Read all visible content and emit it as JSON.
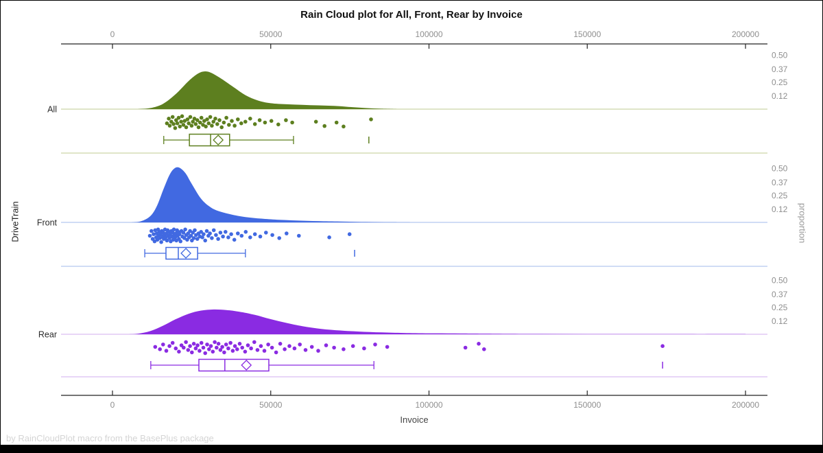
{
  "chart_data": {
    "type": "raincloud",
    "title": "Rain Cloud plot for All, Front, Rear by Invoice",
    "xlabel": "Invoice",
    "ylabel_left": "DriveTrain",
    "ylabel_right": "proportion",
    "footer": "by RainCloudPlot macro from the BasePlus package",
    "x_axis": {
      "min": 0,
      "max": 200000,
      "ticks": [
        0,
        50000,
        100000,
        150000,
        200000
      ]
    },
    "proportion_ticks": [
      0.5,
      0.37,
      0.25,
      0.12
    ],
    "legend_position": "none",
    "grid": false,
    "style": {
      "axis_color": "#222222",
      "tick_label_color": "#8e8e8e",
      "category_label_color": "#2a2a2a",
      "title_color": "#111111",
      "footer_color": "#d5d5d5",
      "background": "#ffffff"
    },
    "groups": [
      {
        "label": "All",
        "color": "#5d7f1f",
        "light_color": "#ccd5a8",
        "box": {
          "low": 16200,
          "q1": 24300,
          "median": 31000,
          "mean": 33400,
          "q3": 37000,
          "high": 57200
        },
        "outliers": [
          81000
        ],
        "density": {
          "x": [
            8000,
            12000,
            16000,
            20000,
            24000,
            27000,
            29000,
            31000,
            34000,
            38000,
            42000,
            46000,
            50000,
            55000,
            60000,
            65000,
            70000,
            75000,
            80000,
            85000,
            90000
          ],
          "p": [
            0,
            0.01,
            0.05,
            0.14,
            0.26,
            0.33,
            0.35,
            0.34,
            0.29,
            0.21,
            0.13,
            0.08,
            0.055,
            0.045,
            0.04,
            0.035,
            0.03,
            0.02,
            0.01,
            0.004,
            0
          ]
        },
        "points": [
          [
            17200,
            0.55
          ],
          [
            17800,
            0.25
          ],
          [
            18100,
            0.7
          ],
          [
            18600,
            0.45
          ],
          [
            19000,
            0.15
          ],
          [
            19300,
            0.6
          ],
          [
            19800,
            0.85
          ],
          [
            20100,
            0.35
          ],
          [
            20500,
            0.55
          ],
          [
            20900,
            0.2
          ],
          [
            21300,
            0.75
          ],
          [
            21700,
            0.45
          ],
          [
            22000,
            0.1
          ],
          [
            22400,
            0.65
          ],
          [
            22800,
            0.4
          ],
          [
            23300,
            0.8
          ],
          [
            23700,
            0.3
          ],
          [
            24100,
            0.55
          ],
          [
            24600,
            0.15
          ],
          [
            25000,
            0.7
          ],
          [
            25400,
            0.45
          ],
          [
            25900,
            0.25
          ],
          [
            26300,
            0.6
          ],
          [
            26800,
            0.35
          ],
          [
            27200,
            0.8
          ],
          [
            27700,
            0.5
          ],
          [
            28100,
            0.2
          ],
          [
            28600,
            0.65
          ],
          [
            29000,
            0.4
          ],
          [
            29500,
            0.75
          ],
          [
            29900,
            0.3
          ],
          [
            30400,
            0.55
          ],
          [
            30900,
            0.15
          ],
          [
            31400,
            0.7
          ],
          [
            31900,
            0.45
          ],
          [
            32500,
            0.25
          ],
          [
            33100,
            0.6
          ],
          [
            33800,
            0.35
          ],
          [
            34500,
            0.8
          ],
          [
            35200,
            0.5
          ],
          [
            36000,
            0.2
          ],
          [
            36800,
            0.65
          ],
          [
            37700,
            0.4
          ],
          [
            38600,
            0.7
          ],
          [
            39600,
            0.3
          ],
          [
            40700,
            0.55
          ],
          [
            42000,
            0.45
          ],
          [
            43500,
            0.25
          ],
          [
            45000,
            0.6
          ],
          [
            46500,
            0.35
          ],
          [
            48200,
            0.5
          ],
          [
            50200,
            0.4
          ],
          [
            52400,
            0.62
          ],
          [
            54800,
            0.35
          ],
          [
            56800,
            0.5
          ],
          [
            64300,
            0.45
          ],
          [
            67000,
            0.72
          ],
          [
            70800,
            0.5
          ],
          [
            73000,
            0.75
          ],
          [
            81700,
            0.3
          ]
        ]
      },
      {
        "label": "Front",
        "color": "#4169e1",
        "light_color": "#b3c7ef",
        "box": {
          "low": 10200,
          "q1": 16900,
          "median": 20800,
          "mean": 23200,
          "q3": 26900,
          "high": 42000
        },
        "outliers": [
          76500
        ],
        "density": {
          "x": [
            6000,
            9000,
            12000,
            14000,
            16000,
            18000,
            19500,
            21000,
            23000,
            25000,
            28000,
            31000,
            34000,
            38000,
            42000,
            47000,
            52000,
            58000,
            65000,
            72000,
            80000,
            88000,
            95000
          ],
          "p": [
            0,
            0.01,
            0.06,
            0.15,
            0.3,
            0.44,
            0.5,
            0.51,
            0.46,
            0.36,
            0.22,
            0.14,
            0.1,
            0.07,
            0.05,
            0.035,
            0.025,
            0.018,
            0.012,
            0.008,
            0.004,
            0.001,
            0
          ]
        },
        "points": [
          [
            11800,
            0.5
          ],
          [
            12300,
            0.2
          ],
          [
            12700,
            0.7
          ],
          [
            13000,
            0.4
          ],
          [
            13300,
            0.85
          ],
          [
            13500,
            0.15
          ],
          [
            13800,
            0.6
          ],
          [
            14000,
            0.35
          ],
          [
            14200,
            0.75
          ],
          [
            14400,
            0.1
          ],
          [
            14600,
            0.5
          ],
          [
            14800,
            0.25
          ],
          [
            15000,
            0.65
          ],
          [
            15200,
            0.4
          ],
          [
            15400,
            0.9
          ],
          [
            15600,
            0.2
          ],
          [
            15800,
            0.55
          ],
          [
            16000,
            0.3
          ],
          [
            16200,
            0.7
          ],
          [
            16400,
            0.45
          ],
          [
            16600,
            0.1
          ],
          [
            16800,
            0.6
          ],
          [
            17000,
            0.35
          ],
          [
            17200,
            0.8
          ],
          [
            17400,
            0.15
          ],
          [
            17600,
            0.5
          ],
          [
            17800,
            0.25
          ],
          [
            18000,
            0.65
          ],
          [
            18200,
            0.4
          ],
          [
            18400,
            0.85
          ],
          [
            18600,
            0.2
          ],
          [
            18800,
            0.55
          ],
          [
            19000,
            0.3
          ],
          [
            19200,
            0.75
          ],
          [
            19400,
            0.1
          ],
          [
            19600,
            0.45
          ],
          [
            19800,
            0.6
          ],
          [
            20000,
            0.35
          ],
          [
            20200,
            0.8
          ],
          [
            20400,
            0.15
          ],
          [
            20600,
            0.5
          ],
          [
            20800,
            0.25
          ],
          [
            21000,
            0.7
          ],
          [
            21200,
            0.4
          ],
          [
            21500,
            0.85
          ],
          [
            21800,
            0.2
          ],
          [
            22100,
            0.55
          ],
          [
            22400,
            0.3
          ],
          [
            22700,
            0.65
          ],
          [
            23000,
            0.1
          ],
          [
            23300,
            0.45
          ],
          [
            23600,
            0.75
          ],
          [
            23900,
            0.35
          ],
          [
            24200,
            0.6
          ],
          [
            24500,
            0.2
          ],
          [
            24800,
            0.5
          ],
          [
            25100,
            0.8
          ],
          [
            25400,
            0.3
          ],
          [
            25700,
            0.65
          ],
          [
            26000,
            0.15
          ],
          [
            26400,
            0.45
          ],
          [
            26800,
            0.7
          ],
          [
            27200,
            0.35
          ],
          [
            27600,
            0.55
          ],
          [
            28000,
            0.25
          ],
          [
            28400,
            0.6
          ],
          [
            28800,
            0.4
          ],
          [
            29300,
            0.8
          ],
          [
            29800,
            0.2
          ],
          [
            30300,
            0.5
          ],
          [
            30800,
            0.35
          ],
          [
            31400,
            0.65
          ],
          [
            32000,
            0.15
          ],
          [
            32700,
            0.45
          ],
          [
            33400,
            0.7
          ],
          [
            34100,
            0.3
          ],
          [
            34900,
            0.55
          ],
          [
            35700,
            0.25
          ],
          [
            36600,
            0.6
          ],
          [
            37500,
            0.4
          ],
          [
            38500,
            0.75
          ],
          [
            39600,
            0.35
          ],
          [
            40800,
            0.5
          ],
          [
            42100,
            0.25
          ],
          [
            43500,
            0.6
          ],
          [
            45000,
            0.4
          ],
          [
            46700,
            0.55
          ],
          [
            48500,
            0.3
          ],
          [
            50500,
            0.45
          ],
          [
            52700,
            0.65
          ],
          [
            55000,
            0.35
          ],
          [
            58900,
            0.5
          ],
          [
            68500,
            0.6
          ],
          [
            74900,
            0.4
          ]
        ]
      },
      {
        "label": "Rear",
        "color": "#8a2be2",
        "light_color": "#d9bdf2",
        "box": {
          "low": 12100,
          "q1": 27300,
          "median": 35500,
          "mean": 42300,
          "q3": 49400,
          "high": 82600
        },
        "outliers": [
          173800
        ],
        "density": {
          "x": [
            4000,
            8000,
            12000,
            16000,
            20000,
            24000,
            28000,
            32000,
            36000,
            40000,
            45000,
            50000,
            55000,
            60000,
            66000,
            72000,
            78000,
            85000,
            92000,
            100000,
            110000,
            120000,
            135000,
            150000,
            165000,
            180000,
            200000
          ],
          "p": [
            0,
            0.005,
            0.03,
            0.08,
            0.14,
            0.19,
            0.22,
            0.23,
            0.225,
            0.21,
            0.18,
            0.14,
            0.105,
            0.075,
            0.05,
            0.035,
            0.025,
            0.017,
            0.012,
            0.009,
            0.007,
            0.005,
            0.003,
            0.002,
            0.002,
            0.001,
            0.001
          ]
        },
        "points": [
          [
            13500,
            0.45
          ],
          [
            15000,
            0.6
          ],
          [
            16000,
            0.3
          ],
          [
            17000,
            0.7
          ],
          [
            18000,
            0.4
          ],
          [
            19000,
            0.2
          ],
          [
            20000,
            0.55
          ],
          [
            21000,
            0.75
          ],
          [
            21800,
            0.35
          ],
          [
            22500,
            0.5
          ],
          [
            23200,
            0.15
          ],
          [
            23900,
            0.65
          ],
          [
            24500,
            0.4
          ],
          [
            25100,
            0.8
          ],
          [
            25700,
            0.25
          ],
          [
            26300,
            0.55
          ],
          [
            26900,
            0.35
          ],
          [
            27500,
            0.7
          ],
          [
            28100,
            0.2
          ],
          [
            28700,
            0.5
          ],
          [
            29300,
            0.85
          ],
          [
            29900,
            0.3
          ],
          [
            30500,
            0.6
          ],
          [
            31100,
            0.4
          ],
          [
            31700,
            0.75
          ],
          [
            32300,
            0.15
          ],
          [
            32900,
            0.5
          ],
          [
            33500,
            0.25
          ],
          [
            34100,
            0.65
          ],
          [
            34700,
            0.45
          ],
          [
            35300,
            0.8
          ],
          [
            35900,
            0.3
          ],
          [
            36600,
            0.55
          ],
          [
            37300,
            0.2
          ],
          [
            38000,
            0.7
          ],
          [
            38700,
            0.4
          ],
          [
            39400,
            0.6
          ],
          [
            40200,
            0.25
          ],
          [
            41000,
            0.5
          ],
          [
            41900,
            0.75
          ],
          [
            42800,
            0.35
          ],
          [
            43800,
            0.55
          ],
          [
            44800,
            0.15
          ],
          [
            45800,
            0.65
          ],
          [
            46900,
            0.4
          ],
          [
            48000,
            0.7
          ],
          [
            49200,
            0.3
          ],
          [
            50400,
            0.5
          ],
          [
            51700,
            0.8
          ],
          [
            53000,
            0.25
          ],
          [
            54400,
            0.6
          ],
          [
            55900,
            0.4
          ],
          [
            57500,
            0.55
          ],
          [
            59200,
            0.3
          ],
          [
            61000,
            0.65
          ],
          [
            63000,
            0.45
          ],
          [
            65000,
            0.7
          ],
          [
            67500,
            0.35
          ],
          [
            70000,
            0.5
          ],
          [
            73000,
            0.6
          ],
          [
            76000,
            0.4
          ],
          [
            79500,
            0.55
          ],
          [
            83000,
            0.3
          ],
          [
            86800,
            0.45
          ],
          [
            111500,
            0.5
          ],
          [
            115700,
            0.25
          ],
          [
            117400,
            0.6
          ],
          [
            173800,
            0.4
          ]
        ]
      }
    ]
  }
}
